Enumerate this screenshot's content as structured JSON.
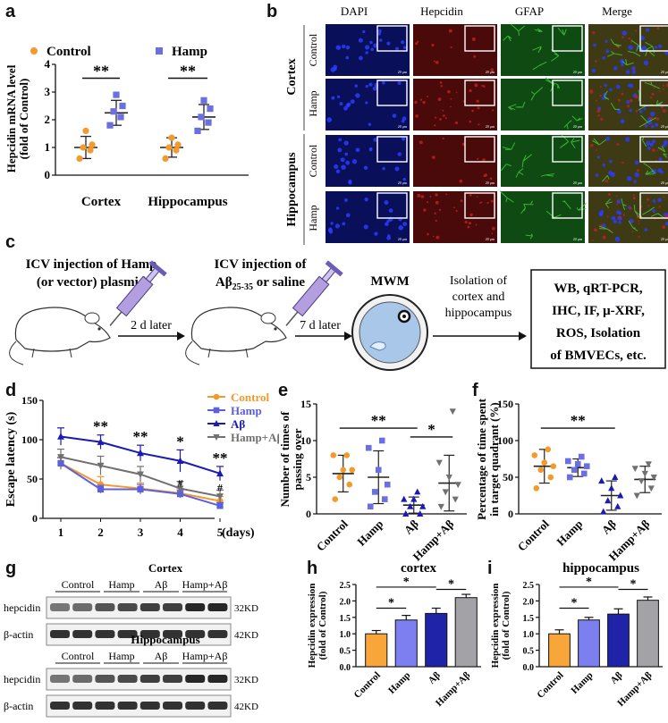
{
  "panel_letters": {
    "a": "a",
    "b": "b",
    "c": "c",
    "d": "d",
    "e": "e",
    "f": "f",
    "g": "g",
    "h": "h",
    "i": "i"
  },
  "panel_b": {
    "columns": [
      "DAPI",
      "Hepcidin",
      "GFAP",
      "Merge"
    ],
    "groups": [
      {
        "label": "Cortex",
        "rows": [
          "Control",
          "Hamp"
        ]
      },
      {
        "label": "Hippocampus",
        "rows": [
          "Control",
          "Hamp"
        ]
      }
    ],
    "scale_text": "20 μm",
    "colors": {
      "DAPI": "#0a0f5a",
      "Hepcidin": "#4a0a0a",
      "GFAP": "#0f4a12",
      "Merge": "#3e3a14",
      "nuclei": "#2a3cff",
      "hepcidin_signal": "#c02020",
      "gfap_signal": "#3ec83e"
    }
  },
  "panel_c": {
    "step1": [
      "ICV injection of Hamp",
      "(or vector) plasmid"
    ],
    "arrow1": "2 d later",
    "step2_line1": "ICV injection of",
    "step2_line2_pre": "Aβ",
    "step2_line2_sub": "25-35",
    "step2_line2_post": " or saline",
    "arrow2": "7 d later",
    "mwm": "MWM",
    "isolation": [
      "Isolation of",
      "cortex and",
      "hippocampus"
    ],
    "assays": [
      "WB, qRT-PCR,",
      "IHC, IF, μ-XRF,",
      "ROS, Isolation",
      "of BMVECs, etc."
    ]
  },
  "panel_g": {
    "cortex_title": "Cortex",
    "hippocampus_title": "Hippocampus",
    "lanes": [
      "Control",
      "Hamp",
      "Aβ",
      "Hamp+Aβ"
    ],
    "rows": [
      "hepcidin",
      "β-actin"
    ],
    "kd": [
      "32KD",
      "42KD"
    ]
  },
  "chart_data": [
    {
      "id": "a",
      "type": "scatter",
      "ylabel": "Hepcidin mRNA level\n(fold of Control)",
      "ylim": [
        0,
        4
      ],
      "yticks": [
        0,
        1,
        2,
        3,
        4
      ],
      "categories": [
        "Cortex",
        "Hippocampus"
      ],
      "legend": [
        {
          "name": "Control",
          "color": "#f39a2b"
        },
        {
          "name": "Hamp",
          "color": "#6b6fe0"
        }
      ],
      "series": [
        {
          "name": "Control",
          "color": "#f39a2b",
          "groups": [
            {
              "mean": 1.0,
              "sd": 0.4,
              "points": [
                0.6,
                0.9,
                1.0,
                1.1,
                1.6
              ]
            },
            {
              "mean": 1.0,
              "sd": 0.35,
              "points": [
                0.6,
                0.9,
                1.0,
                1.1,
                1.35
              ]
            }
          ]
        },
        {
          "name": "Hamp",
          "color": "#6b6fe0",
          "groups": [
            {
              "mean": 2.25,
              "sd": 0.45,
              "points": [
                1.8,
                2.1,
                2.3,
                2.5,
                2.9
              ]
            },
            {
              "mean": 2.1,
              "sd": 0.45,
              "points": [
                1.6,
                1.9,
                2.1,
                2.4,
                2.7
              ]
            }
          ]
        }
      ],
      "significance": [
        "**",
        "**"
      ]
    },
    {
      "id": "d",
      "type": "line",
      "ylabel": "Escape latency (s)",
      "xlabel": "(days)",
      "x": [
        1,
        2,
        3,
        4,
        5
      ],
      "ylim": [
        0,
        150
      ],
      "yticks": [
        0,
        50,
        100,
        150
      ],
      "series": [
        {
          "name": "Control",
          "color": "#f39a2b",
          "marker": "circle",
          "values": [
            70,
            43,
            38,
            32,
            22
          ],
          "sd": [
            8,
            10,
            7,
            6,
            6
          ]
        },
        {
          "name": "Hamp",
          "color": "#5b5fe0",
          "marker": "square",
          "values": [
            70,
            37,
            37,
            31,
            16
          ],
          "sd": [
            7,
            5,
            6,
            5,
            4
          ]
        },
        {
          "name": "Aβ",
          "color": "#1a1ab4",
          "marker": "triangle",
          "values": [
            104,
            97,
            83,
            73,
            57
          ],
          "sd": [
            11,
            9,
            10,
            14,
            9
          ]
        },
        {
          "name": "Hamp+Aβ",
          "color": "#707070",
          "marker": "triangle-down",
          "values": [
            78,
            67,
            56,
            38,
            28
          ],
          "sd": [
            10,
            12,
            10,
            9,
            8
          ]
        }
      ],
      "annotations": [
        {
          "x": 2,
          "text": "**"
        },
        {
          "x": 3,
          "text": "**"
        },
        {
          "x": 4,
          "text": "*"
        },
        {
          "x": 4,
          "text": "#"
        },
        {
          "x": 5,
          "text": "**"
        },
        {
          "x": 5,
          "text": "#"
        }
      ]
    },
    {
      "id": "e",
      "type": "scatter",
      "ylabel": "Number of times of\npassing over",
      "ylim": [
        0,
        15
      ],
      "yticks": [
        0,
        5,
        10,
        15
      ],
      "categories": [
        "Control",
        "Hamp",
        "Aβ",
        "Hamp+Aβ"
      ],
      "colors": [
        "#f39a2b",
        "#6b6fe0",
        "#1a1ab4",
        "#707070"
      ],
      "markers": [
        "circle",
        "square",
        "triangle",
        "triangle-down"
      ],
      "means": [
        5.5,
        5.0,
        1.2,
        4.2
      ],
      "sd": [
        2.5,
        3.6,
        1.1,
        3.8
      ],
      "points": [
        [
          2,
          4,
          5,
          6,
          6,
          8,
          8
        ],
        [
          1,
          2,
          3,
          4,
          6,
          9,
          10
        ],
        [
          0,
          0,
          1,
          1,
          2,
          2,
          3
        ],
        [
          1,
          2,
          3,
          4,
          5,
          7,
          14
        ]
      ],
      "significance": [
        {
          "from": 0,
          "to": 2,
          "text": "**"
        },
        {
          "from": 2,
          "to": 3,
          "text": "*"
        }
      ]
    },
    {
      "id": "f",
      "type": "scatter",
      "ylabel": "Percentage of time spent\nin target quadrant (%)",
      "ylim": [
        0,
        150
      ],
      "yticks": [
        0,
        50,
        100,
        150
      ],
      "categories": [
        "Control",
        "Hamp",
        "Aβ",
        "Hamp+Aβ"
      ],
      "colors": [
        "#f39a2b",
        "#6b6fe0",
        "#1a1ab4",
        "#707070"
      ],
      "markers": [
        "circle",
        "square",
        "triangle",
        "triangle-down"
      ],
      "means": [
        65,
        63,
        25,
        47
      ],
      "sd": [
        23,
        12,
        20,
        18
      ],
      "points": [
        [
          35,
          50,
          60,
          65,
          70,
          80,
          88
        ],
        [
          50,
          55,
          60,
          65,
          68,
          72,
          78
        ],
        [
          3,
          10,
          18,
          25,
          35,
          45,
          50
        ],
        [
          25,
          35,
          45,
          50,
          55,
          62,
          68
        ]
      ],
      "significance": [
        {
          "from": 0,
          "to": 2,
          "text": "**"
        }
      ]
    },
    {
      "id": "h",
      "type": "bar",
      "title": "cortex",
      "ylabel": "Hepcidin expression\n(fold of Control)",
      "categories": [
        "Control",
        "Hamp",
        "Aβ",
        "Hamp+Aβ"
      ],
      "values": [
        1.0,
        1.42,
        1.62,
        2.1
      ],
      "sd": [
        0.1,
        0.14,
        0.16,
        0.1
      ],
      "colors": [
        "#f8a53a",
        "#7b7ff0",
        "#1f23a8",
        "#a3a3a7"
      ],
      "ylim": [
        0,
        2.5
      ],
      "yticks": [
        0,
        0.5,
        1.0,
        1.5,
        2.0,
        2.5
      ],
      "significance": [
        {
          "from": 0,
          "to": 1,
          "text": "*"
        },
        {
          "from": 0,
          "to": 2,
          "text": "*"
        },
        {
          "from": 2,
          "to": 3,
          "text": "*"
        }
      ]
    },
    {
      "id": "i",
      "type": "bar",
      "title": "hippocampus",
      "ylabel": "Hepcidin expression\n(fold of Control)",
      "categories": [
        "Control",
        "Hamp",
        "Aβ",
        "Hamp+Aβ"
      ],
      "values": [
        1.0,
        1.42,
        1.6,
        2.02
      ],
      "sd": [
        0.12,
        0.08,
        0.16,
        0.1
      ],
      "colors": [
        "#f8a53a",
        "#7b7ff0",
        "#1f23a8",
        "#a3a3a7"
      ],
      "ylim": [
        0,
        2.5
      ],
      "yticks": [
        0,
        0.5,
        1.0,
        1.5,
        2.0,
        2.5
      ],
      "significance": [
        {
          "from": 0,
          "to": 1,
          "text": "*"
        },
        {
          "from": 0,
          "to": 2,
          "text": "*"
        },
        {
          "from": 2,
          "to": 3,
          "text": "*"
        }
      ]
    }
  ]
}
